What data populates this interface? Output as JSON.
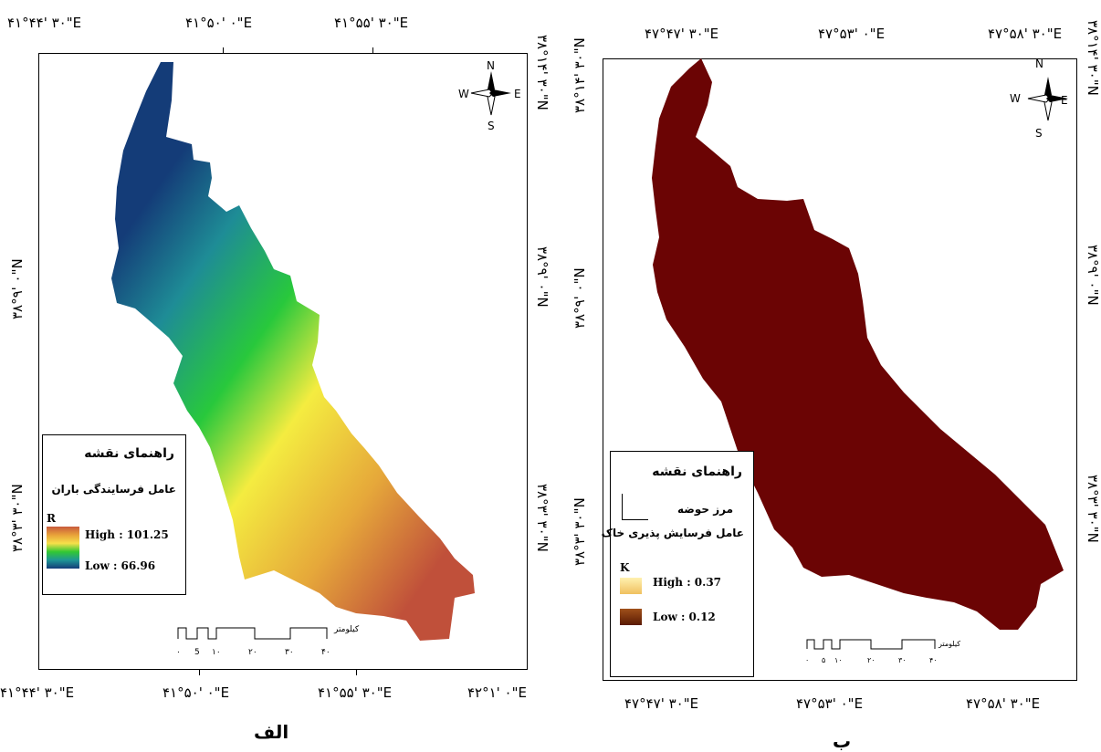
{
  "map_a": {
    "top_coords": [
      "۴۱°۴۴' ۳۰\"E",
      "۴۱°۵۰' ۰\"E",
      "۴۱°۵۵' ۳۰\"E"
    ],
    "bottom_coords": [
      "۴۱°۴۴' ۳۰\"E",
      "۴۱°۵۰' ۰\"E",
      "۴۱°۵۵' ۳۰\"E",
      "۴۲°۱' ۰\"E"
    ],
    "left_coords": [
      "۳۸°۹' ۰\"N",
      "۳۸°۳' ۳۰\"N"
    ],
    "right_coords": [
      "۳۸°۱۴' ۳۰\"N",
      "۳۸°۹' ۰\"N",
      "۳۸°۳' ۳۰\"N"
    ],
    "legend": {
      "title": "راهنمای نقشه",
      "subtitle": "عامل فرسایندگی باران",
      "symbol": "R",
      "high": "High : 101.25",
      "low": "Low : 66.96",
      "ramp_colors": [
        "#c85a3c",
        "#e8a23a",
        "#f6e04a",
        "#32c832",
        "#1e9696",
        "#143c78"
      ]
    },
    "scale": {
      "unit": "کیلومتر",
      "ticks": [
        "۰",
        "5",
        "۱۰",
        "۲۰",
        "۳۰",
        "۴۰"
      ]
    },
    "caption": "الف"
  },
  "map_b": {
    "top_coords": [
      "۴۷°۴۷' ۳۰\"E",
      "۴۷°۵۳' ۰\"E",
      "۴۷°۵۸' ۳۰\"E"
    ],
    "bottom_coords": [
      "۴۷°۴۷' ۳۰\"E",
      "۴۷°۵۳' ۰\"E",
      "۴۷°۵۸' ۳۰\"E"
    ],
    "left_coords": [
      "۳۸°۱۴' ۳۰\"N",
      "۳۸°۹' ۰\"N",
      "۳۸°۳' ۳۰\"N"
    ],
    "right_coords": [
      "۳۸°۱۴' ۳۰\"N",
      "۳۸°۹' ۰\"N",
      "۳۸°۳' ۳۰\"N"
    ],
    "legend": {
      "title": "راهنمای نقشه",
      "boundary_label": "مرز حوضه",
      "subtitle": "عامل فرسایش پذیری خاک",
      "symbol": "K",
      "high": "High : 0.37",
      "low": "Low : 0.12",
      "fill_color": "#6b0404",
      "high_color": "#f8d880",
      "low_color": "#7a2a08"
    },
    "scale": {
      "unit": "کیلومتر",
      "ticks": [
        "۰",
        "۵",
        "۱۰",
        "۲۰",
        "۳۰",
        "۴۰"
      ]
    },
    "caption": "ب"
  },
  "compass": {
    "n": "N",
    "s": "S",
    "e": "E",
    "w": "W"
  }
}
